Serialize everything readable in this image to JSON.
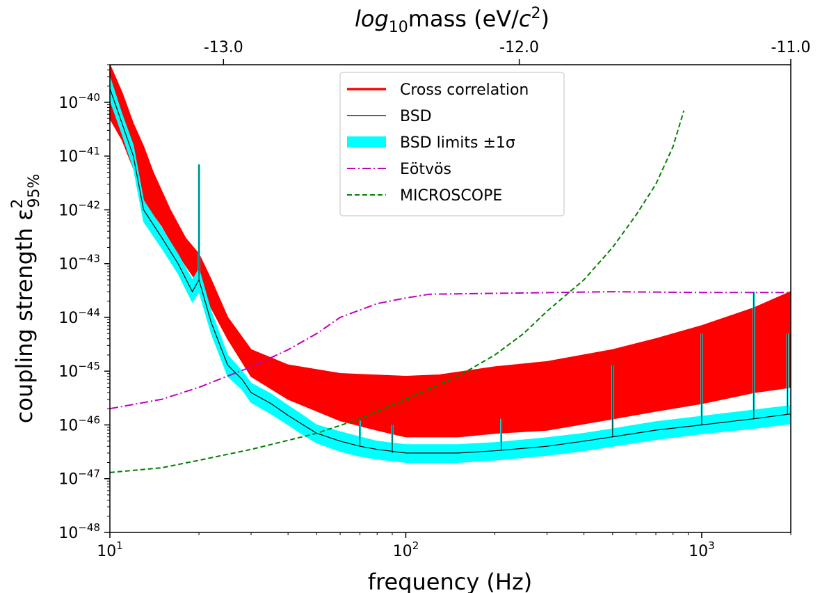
{
  "chart_data": {
    "type": "line",
    "xlabel": "frequency (Hz)",
    "ylabel": "coupling strength ε²95%",
    "top_xlabel": "log10mass (eV/c²)",
    "x_scale": "log",
    "y_scale": "log",
    "xlim": [
      10,
      2000
    ],
    "ylim": [
      1e-48,
      5e-40
    ],
    "grid": false,
    "legend_position": "top-center",
    "x_ticks": [
      {
        "value": 10,
        "base": "10",
        "exp": "1"
      },
      {
        "value": 100,
        "base": "10",
        "exp": "2"
      },
      {
        "value": 1000,
        "base": "10",
        "exp": "3"
      }
    ],
    "y_ticks": [
      {
        "value": 1e-40,
        "base": "10",
        "exp": "−40"
      },
      {
        "value": 1e-41,
        "base": "10",
        "exp": "−41"
      },
      {
        "value": 1e-42,
        "base": "10",
        "exp": "−42"
      },
      {
        "value": 1e-43,
        "base": "10",
        "exp": "−43"
      },
      {
        "value": 1e-44,
        "base": "10",
        "exp": "−44"
      },
      {
        "value": 1e-45,
        "base": "10",
        "exp": "−45"
      },
      {
        "value": 1e-46,
        "base": "10",
        "exp": "−46"
      },
      {
        "value": 1e-47,
        "base": "10",
        "exp": "−47"
      },
      {
        "value": 1e-48,
        "base": "10",
        "exp": "−48"
      }
    ],
    "top_ticks": [
      {
        "frequency": 24.2,
        "label": "-13.0"
      },
      {
        "frequency": 241.8,
        "label": "-12.0"
      },
      {
        "frequency": 2418,
        "label": "-11.0"
      }
    ],
    "series": [
      {
        "name": "Cross correlation",
        "color": "#ff0000",
        "style": "band",
        "upper": [
          [
            10,
            5e-40
          ],
          [
            11,
            1.5e-40
          ],
          [
            12,
            4e-41
          ],
          [
            13,
            1.5e-41
          ],
          [
            14,
            5e-42
          ],
          [
            16,
            1e-42
          ],
          [
            18,
            3e-43
          ],
          [
            20,
            1.5e-43
          ],
          [
            22,
            5e-44
          ],
          [
            25,
            1e-44
          ],
          [
            30,
            2.5e-45
          ],
          [
            40,
            1.3e-45
          ],
          [
            60,
            9e-46
          ],
          [
            100,
            8e-46
          ],
          [
            130,
            8.5e-46
          ],
          [
            200,
            1.2e-45
          ],
          [
            300,
            1.5e-45
          ],
          [
            500,
            2.5e-45
          ],
          [
            700,
            4e-45
          ],
          [
            1000,
            7e-45
          ],
          [
            1500,
            1.5e-44
          ],
          [
            2000,
            3e-44
          ]
        ],
        "lower": [
          [
            10,
            5e-41
          ],
          [
            11,
            2e-41
          ],
          [
            12,
            6e-42
          ],
          [
            13,
            1.5e-42
          ],
          [
            15,
            5e-43
          ],
          [
            17,
            1.5e-43
          ],
          [
            20,
            4e-44
          ],
          [
            22,
            1.5e-44
          ],
          [
            25,
            4e-45
          ],
          [
            30,
            8e-46
          ],
          [
            40,
            3e-46
          ],
          [
            60,
            1.2e-46
          ],
          [
            80,
            8e-47
          ],
          [
            100,
            6e-47
          ],
          [
            150,
            6e-47
          ],
          [
            200,
            7e-47
          ],
          [
            300,
            8e-47
          ],
          [
            500,
            1.3e-46
          ],
          [
            700,
            1.8e-46
          ],
          [
            1000,
            2.5e-46
          ],
          [
            1500,
            4e-46
          ],
          [
            2000,
            5e-46
          ]
        ]
      },
      {
        "name": "BSD",
        "color": "#000000",
        "style": "line",
        "points": [
          [
            10,
            1.8e-40
          ],
          [
            11,
            4e-41
          ],
          [
            12,
            1e-41
          ],
          [
            13,
            1e-42
          ],
          [
            15,
            3e-43
          ],
          [
            17,
            1e-43
          ],
          [
            19,
            3e-44
          ],
          [
            20,
            5e-44
          ],
          [
            22,
            8e-45
          ],
          [
            25,
            1.3e-45
          ],
          [
            28,
            7e-46
          ],
          [
            30,
            4e-46
          ],
          [
            35,
            2.5e-46
          ],
          [
            40,
            1.5e-46
          ],
          [
            45,
            1e-46
          ],
          [
            50,
            7e-47
          ],
          [
            60,
            5e-47
          ],
          [
            70,
            4e-47
          ],
          [
            80,
            3.5e-47
          ],
          [
            100,
            3e-47
          ],
          [
            150,
            3e-47
          ],
          [
            200,
            3.3e-47
          ],
          [
            300,
            4e-47
          ],
          [
            400,
            5e-47
          ],
          [
            500,
            6e-47
          ],
          [
            700,
            8e-47
          ],
          [
            1000,
            1e-46
          ],
          [
            1500,
            1.3e-46
          ],
          [
            2000,
            1.6e-46
          ]
        ]
      },
      {
        "name": "BSD limits ±1σ",
        "color": "#00ffff",
        "style": "band",
        "upper": [
          [
            10,
            3e-40
          ],
          [
            11,
            6e-41
          ],
          [
            12,
            1.6e-41
          ],
          [
            13,
            1.5e-42
          ],
          [
            15,
            4.5e-43
          ],
          [
            17,
            1.5e-43
          ],
          [
            19,
            5e-44
          ],
          [
            20,
            8e-44
          ],
          [
            22,
            1.3e-44
          ],
          [
            25,
            2e-45
          ],
          [
            28,
            1e-45
          ],
          [
            30,
            6e-46
          ],
          [
            35,
            3.8e-46
          ],
          [
            40,
            2.3e-46
          ],
          [
            45,
            1.5e-46
          ],
          [
            50,
            1e-46
          ],
          [
            60,
            7.5e-47
          ],
          [
            70,
            6e-47
          ],
          [
            80,
            5e-47
          ],
          [
            100,
            4.3e-47
          ],
          [
            150,
            4.3e-47
          ],
          [
            200,
            4.7e-47
          ],
          [
            300,
            5.8e-47
          ],
          [
            400,
            7e-47
          ],
          [
            500,
            8.5e-47
          ],
          [
            700,
            1.15e-46
          ],
          [
            1000,
            1.45e-46
          ],
          [
            1500,
            1.9e-46
          ],
          [
            2000,
            2.3e-46
          ]
        ],
        "lower": [
          [
            10,
            1.1e-40
          ],
          [
            11,
            2.5e-41
          ],
          [
            12,
            6e-42
          ],
          [
            13,
            6e-43
          ],
          [
            15,
            1.9e-43
          ],
          [
            17,
            6.5e-44
          ],
          [
            19,
            1.9e-44
          ],
          [
            20,
            3e-44
          ],
          [
            22,
            5e-45
          ],
          [
            25,
            8e-46
          ],
          [
            28,
            4.5e-46
          ],
          [
            30,
            2.6e-46
          ],
          [
            35,
            1.6e-46
          ],
          [
            40,
            1e-46
          ],
          [
            45,
            6.5e-47
          ],
          [
            50,
            4.6e-47
          ],
          [
            60,
            3.2e-47
          ],
          [
            70,
            2.6e-47
          ],
          [
            80,
            2.3e-47
          ],
          [
            100,
            2e-47
          ],
          [
            150,
            2e-47
          ],
          [
            200,
            2.2e-47
          ],
          [
            300,
            2.7e-47
          ],
          [
            400,
            3.3e-47
          ],
          [
            500,
            4e-47
          ],
          [
            700,
            5.3e-47
          ],
          [
            1000,
            6.8e-47
          ],
          [
            1500,
            8.6e-47
          ],
          [
            2000,
            1.05e-46
          ]
        ]
      },
      {
        "name": "Eötvös",
        "color": "#bf00bf",
        "style": "dashdot",
        "points": [
          [
            10,
            2e-46
          ],
          [
            15,
            3e-46
          ],
          [
            20,
            5e-46
          ],
          [
            30,
            1.2e-45
          ],
          [
            40,
            2.5e-45
          ],
          [
            50,
            5e-45
          ],
          [
            60,
            1e-44
          ],
          [
            80,
            1.8e-44
          ],
          [
            100,
            2.3e-44
          ],
          [
            120,
            2.7e-44
          ],
          [
            200,
            2.8e-44
          ],
          [
            500,
            3e-44
          ],
          [
            1000,
            2.9e-44
          ],
          [
            2000,
            2.9e-44
          ]
        ]
      },
      {
        "name": "MICROSCOPE",
        "color": "#008000",
        "style": "dashed",
        "points": [
          [
            10,
            1.3e-47
          ],
          [
            15,
            1.6e-47
          ],
          [
            20,
            2.2e-47
          ],
          [
            30,
            3.5e-47
          ],
          [
            50,
            7e-47
          ],
          [
            70,
            1.3e-46
          ],
          [
            100,
            3e-46
          ],
          [
            150,
            8e-46
          ],
          [
            200,
            2e-45
          ],
          [
            250,
            5e-45
          ],
          [
            300,
            1.3e-44
          ],
          [
            400,
            5e-44
          ],
          [
            500,
            2e-43
          ],
          [
            600,
            8e-43
          ],
          [
            700,
            3e-42
          ],
          [
            800,
            1.5e-41
          ],
          [
            870,
            7e-41
          ]
        ]
      }
    ],
    "spikes": [
      {
        "x": 20,
        "top": 7e-42
      },
      {
        "x": 70,
        "top": 1.2e-46
      },
      {
        "x": 90,
        "top": 1e-46
      },
      {
        "x": 210,
        "top": 1.3e-46
      },
      {
        "x": 500,
        "top": 1.3e-45
      },
      {
        "x": 1000,
        "top": 5e-45
      },
      {
        "x": 1500,
        "top": 3e-44
      },
      {
        "x": 1950,
        "top": 5e-45
      }
    ]
  }
}
